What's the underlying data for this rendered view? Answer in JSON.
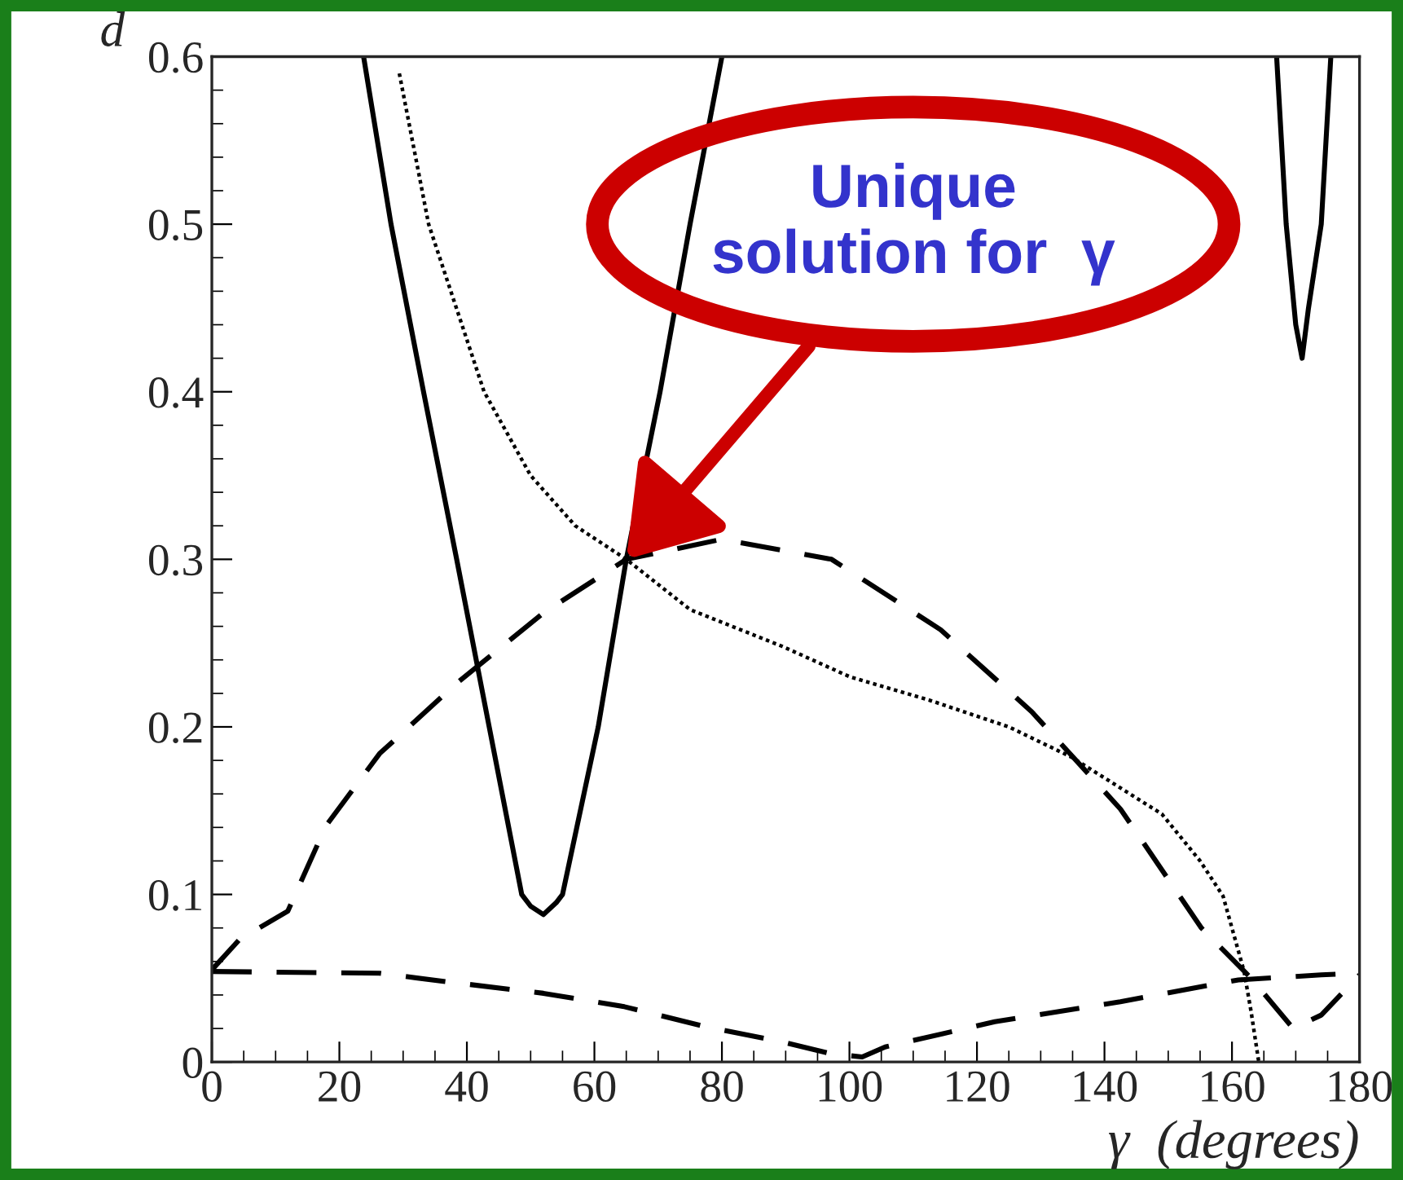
{
  "chart_data": {
    "type": "line",
    "xlabel": "γ  (degrees)",
    "ylabel": "d",
    "xlim": [
      0,
      180
    ],
    "ylim": [
      0,
      0.6
    ],
    "xticks": [
      0,
      20,
      40,
      60,
      80,
      100,
      120,
      140,
      160,
      180
    ],
    "yticks": [
      0,
      0.1,
      0.2,
      0.3,
      0.4,
      0.5,
      0.6
    ],
    "grid": false,
    "series": [
      {
        "color": "#000000",
        "line_style": "solid",
        "x": [
          23.8,
          28.1,
          33.2,
          38.4,
          43.5,
          48.6,
          50,
          52,
          54,
          55,
          60.6,
          65,
          70.3,
          75,
          80
        ],
        "values": [
          0.6,
          0.5,
          0.4,
          0.3,
          0.2,
          0.1,
          0.093,
          0.088,
          0.095,
          0.1,
          0.2,
          0.3,
          0.4,
          0.5,
          0.6
        ]
      },
      {
        "color": "#000000",
        "line_style": "solid",
        "x": [
          167,
          168.5,
          170,
          171,
          172,
          174,
          175.5
        ],
        "values": [
          0.6,
          0.5,
          0.44,
          0.42,
          0.45,
          0.5,
          0.6
        ]
      },
      {
        "color": "#000000",
        "line_style": "dotted",
        "x": [
          29.4,
          34,
          42.7,
          50,
          57,
          65,
          75,
          89.5,
          100,
          112.5,
          125,
          134.8,
          149,
          155,
          158.6,
          161.9,
          163,
          164.2
        ],
        "values": [
          0.59,
          0.5,
          0.4,
          0.35,
          0.32,
          0.3,
          0.27,
          0.248,
          0.23,
          0.216,
          0.2,
          0.182,
          0.148,
          0.12,
          0.099,
          0.054,
          0.03,
          0
        ]
      },
      {
        "color": "#000000",
        "line_style": "dashed",
        "x": [
          0,
          4.3,
          11.9,
          17.9,
          26.3,
          38.4,
          52,
          65,
          80,
          97.2,
          114.3,
          128.6,
          142.5,
          155.2,
          163,
          169.6,
          174,
          178.5,
          180
        ],
        "values": [
          0.055,
          0.073,
          0.09,
          0.141,
          0.184,
          0.226,
          0.268,
          0.3,
          0.312,
          0.3,
          0.258,
          0.209,
          0.151,
          0.08,
          0.05,
          0.02,
          0.028,
          0.046,
          0.052
        ]
      },
      {
        "color": "#000000",
        "line_style": "dashed",
        "x": [
          0,
          26.3,
          36.6,
          52,
          64.7,
          77.5,
          89.5,
          97,
          102,
          105.6,
          122.8,
          142.5,
          161,
          174,
          180
        ],
        "values": [
          0.054,
          0.053,
          0.048,
          0.041,
          0.033,
          0.021,
          0.012,
          0.005,
          0.003,
          0.009,
          0.024,
          0.036,
          0.049,
          0.052,
          0.053
        ]
      }
    ],
    "annotations": [
      {
        "text": "Unique\nsolution for  γ",
        "x": 65,
        "y": 0.3
      }
    ]
  }
}
